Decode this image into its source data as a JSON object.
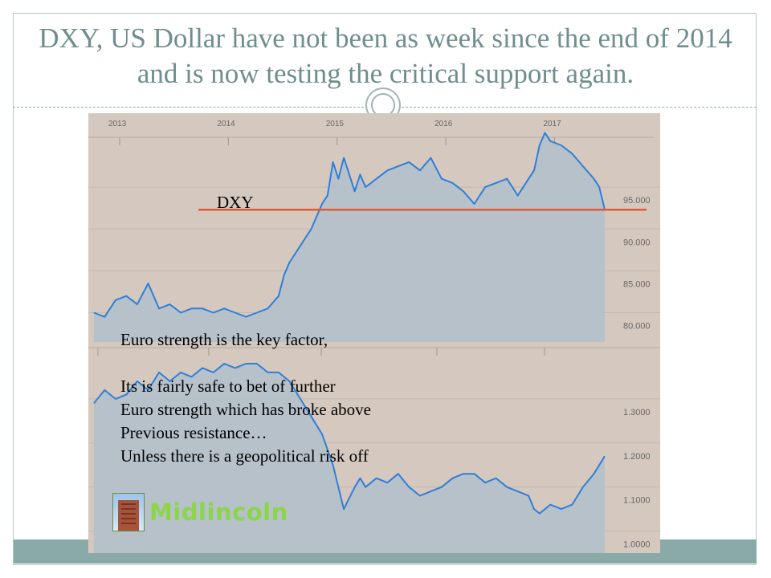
{
  "slide": {
    "title": "DXY, US Dollar have not been as week since the end of 2014 and is now testing the critical support again.",
    "text_lines": [
      "Euro strength is the key factor,",
      "Its is fairly safe to bet of further",
      "Euro strength which has broke above",
      "Previous resistance…",
      "Unless there is a geopolitical risk off"
    ],
    "logo_text": "Midlincoln"
  },
  "colors": {
    "background": "#d5c9bf",
    "area_fill": "#b3c0cb",
    "line": "#2f7ed8",
    "support_line": "#e05a3a",
    "title": "#6f8e8e",
    "footer": "#8aaaa8"
  },
  "chart_data": [
    {
      "type": "area",
      "label": "DXY",
      "x_ticks": [
        "2013",
        "2014",
        "2015",
        "2016",
        "2017"
      ],
      "y_ticks": [
        "95.000",
        "90.000",
        "85.000",
        "80.000"
      ],
      "ylim": [
        76.5,
        100
      ],
      "support_level": 92.3,
      "x": [
        2012.9,
        2013.0,
        2013.1,
        2013.2,
        2013.3,
        2013.4,
        2013.5,
        2013.6,
        2013.7,
        2013.8,
        2013.9,
        2014.0,
        2014.1,
        2014.2,
        2014.3,
        2014.4,
        2014.5,
        2014.6,
        2014.65,
        2014.7,
        2014.8,
        2014.9,
        2015.0,
        2015.05,
        2015.1,
        2015.15,
        2015.2,
        2015.3,
        2015.35,
        2015.4,
        2015.5,
        2015.6,
        2015.7,
        2015.8,
        2015.9,
        2016.0,
        2016.1,
        2016.2,
        2016.3,
        2016.4,
        2016.5,
        2016.6,
        2016.7,
        2016.8,
        2016.9,
        2016.95,
        2017.0,
        2017.05,
        2017.1,
        2017.2,
        2017.3,
        2017.4,
        2017.5,
        2017.55,
        2017.6
      ],
      "y": [
        80,
        79.5,
        81.5,
        82,
        81,
        83.5,
        80.5,
        81,
        80,
        80.5,
        80.5,
        80,
        80.5,
        80,
        79.5,
        80,
        80.5,
        82,
        84.5,
        86,
        88,
        90,
        93,
        94,
        98,
        96,
        98.5,
        94.5,
        96.5,
        95,
        96,
        97,
        97.5,
        98,
        97,
        98.5,
        96,
        95.5,
        94.5,
        93,
        95,
        95.5,
        96,
        94,
        96,
        97,
        100,
        101.5,
        100.5,
        100,
        99,
        97.5,
        96,
        95,
        92.3
      ]
    },
    {
      "type": "area",
      "label": "",
      "y_ticks": [
        "1.3000",
        "1.2000",
        "1.1000",
        "1.0000"
      ],
      "ylim": [
        0.95,
        1.42
      ],
      "x": [
        2012.9,
        2013.0,
        2013.1,
        2013.2,
        2013.3,
        2013.4,
        2013.5,
        2013.6,
        2013.7,
        2013.8,
        2013.9,
        2014.0,
        2014.1,
        2014.2,
        2014.3,
        2014.4,
        2014.5,
        2014.6,
        2014.7,
        2014.8,
        2014.9,
        2015.0,
        2015.1,
        2015.15,
        2015.2,
        2015.3,
        2015.35,
        2015.4,
        2015.5,
        2015.6,
        2015.7,
        2015.8,
        2015.9,
        2016.0,
        2016.1,
        2016.2,
        2016.3,
        2016.4,
        2016.5,
        2016.6,
        2016.7,
        2016.8,
        2016.9,
        2016.95,
        2017.0,
        2017.1,
        2017.2,
        2017.3,
        2017.4,
        2017.5,
        2017.6
      ],
      "y": [
        1.29,
        1.32,
        1.3,
        1.31,
        1.34,
        1.32,
        1.36,
        1.34,
        1.36,
        1.35,
        1.37,
        1.36,
        1.38,
        1.37,
        1.38,
        1.38,
        1.36,
        1.36,
        1.34,
        1.3,
        1.26,
        1.22,
        1.15,
        1.1,
        1.05,
        1.1,
        1.12,
        1.1,
        1.12,
        1.11,
        1.13,
        1.1,
        1.08,
        1.09,
        1.1,
        1.12,
        1.13,
        1.13,
        1.11,
        1.12,
        1.1,
        1.09,
        1.08,
        1.05,
        1.04,
        1.06,
        1.05,
        1.06,
        1.1,
        1.13,
        1.17
      ]
    }
  ]
}
